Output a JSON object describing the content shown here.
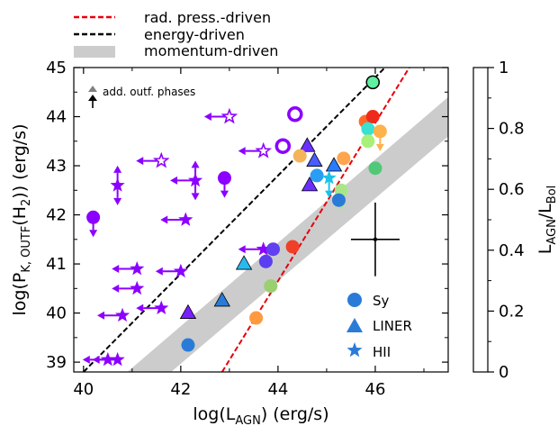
{
  "chart_data": {
    "type": "scatter",
    "title": "",
    "xlabel": "log(L",
    "xlabel_sub": "AGN",
    "xlabel_tail": ") (erg/s)",
    "ylabel": "log(P",
    "ylabel_sub": "K, OUTF",
    "ylabel_mid": "(H",
    "ylabel_sub2": "2",
    "ylabel_tail": ")) (erg/s)",
    "xlim": [
      39.8,
      47.5
    ],
    "ylim": [
      38.8,
      45.0
    ],
    "xticks": [
      "40",
      "42",
      "44",
      "46"
    ],
    "yticks": [
      "39",
      "40",
      "41",
      "42",
      "43",
      "44",
      "45"
    ],
    "colorbar": {
      "label": "L",
      "label_sub1": "AGN",
      "label_mid": "/L",
      "label_sub2": "Bol",
      "range": [
        0,
        1
      ],
      "ticks": [
        "0",
        "0.2",
        "0.4",
        "0.6",
        "0.8",
        "1"
      ]
    },
    "top_legend": [
      {
        "label": "rad. press.-driven",
        "style": "dashed",
        "color": "#e8000b"
      },
      {
        "label": "energy-driven",
        "style": "dashed",
        "color": "#000000"
      },
      {
        "label": "momentum-driven",
        "style": "band",
        "color": "#cccccc"
      }
    ],
    "annotation": "add. outf. phases",
    "marker_legend": [
      {
        "label": "Sy",
        "marker": "circle"
      },
      {
        "label": "LINER",
        "marker": "triangle"
      },
      {
        "label": "HII",
        "marker": "star"
      }
    ],
    "lines": {
      "energy_driven": [
        [
          40.0,
          38.8
        ],
        [
          46.2,
          45.0
        ]
      ],
      "radiation_driven": [
        [
          42.85,
          38.8
        ],
        [
          46.7,
          45.0
        ]
      ],
      "momentum_band": {
        "lower": [
          [
            41.8,
            38.8
          ],
          [
            47.5,
            43.6
          ]
        ],
        "upper": [
          [
            40.9,
            38.8
          ],
          [
            47.5,
            44.4
          ]
        ]
      }
    },
    "error_bar": {
      "x": 46.0,
      "y": 41.5,
      "dx": 0.5,
      "dy": 0.75
    },
    "points": [
      {
        "x": 40.2,
        "y": 41.95,
        "m": "circle",
        "c": "#8b00ff",
        "arrow": "down"
      },
      {
        "x": 40.7,
        "y": 42.6,
        "m": "star",
        "c": "#8b00ff",
        "arrow": "updown"
      },
      {
        "x": 41.6,
        "y": 43.1,
        "m": "star-open",
        "c": "#8b00ff",
        "arrow": "left"
      },
      {
        "x": 43.0,
        "y": 44.0,
        "m": "star-open",
        "c": "#8b00ff",
        "arrow": "left"
      },
      {
        "x": 43.7,
        "y": 43.3,
        "m": "star-open",
        "c": "#8b00ff",
        "arrow": "left"
      },
      {
        "x": 42.3,
        "y": 42.7,
        "m": "star",
        "c": "#8b00ff",
        "arrow": "updownleft"
      },
      {
        "x": 42.1,
        "y": 41.9,
        "m": "star",
        "c": "#8b00ff",
        "arrow": "left"
      },
      {
        "x": 42.9,
        "y": 42.75,
        "m": "circle",
        "c": "#8b00ff",
        "arrow": "down"
      },
      {
        "x": 43.7,
        "y": 41.3,
        "m": "star",
        "c": "#8b00ff",
        "arrow": "left"
      },
      {
        "x": 41.1,
        "y": 40.9,
        "m": "star",
        "c": "#8b00ff",
        "arrow": "left"
      },
      {
        "x": 42.0,
        "y": 40.85,
        "m": "star",
        "c": "#8b00ff",
        "arrow": "left"
      },
      {
        "x": 41.1,
        "y": 40.5,
        "m": "star",
        "c": "#8b00ff",
        "arrow": "left"
      },
      {
        "x": 41.6,
        "y": 40.1,
        "m": "star",
        "c": "#8b00ff",
        "arrow": "left"
      },
      {
        "x": 40.8,
        "y": 39.95,
        "m": "star",
        "c": "#8b00ff",
        "arrow": "left"
      },
      {
        "x": 40.7,
        "y": 39.05,
        "m": "star",
        "c": "#8b00ff",
        "arrow": "left"
      },
      {
        "x": 40.5,
        "y": 39.05,
        "m": "star",
        "c": "#8b00ff",
        "arrow": "left"
      },
      {
        "x": 44.1,
        "y": 43.4,
        "m": "circle-open",
        "c": "#8b00ff"
      },
      {
        "x": 44.35,
        "y": 44.05,
        "m": "circle-open",
        "c": "#8b00ff"
      },
      {
        "x": 44.6,
        "y": 43.4,
        "m": "triangle",
        "c": "#6a2fff"
      },
      {
        "x": 44.45,
        "y": 43.2,
        "m": "circle",
        "c": "#f5b35a"
      },
      {
        "x": 44.75,
        "y": 43.1,
        "m": "triangle",
        "c": "#4a5cff"
      },
      {
        "x": 45.15,
        "y": 43.0,
        "m": "triangle",
        "c": "#2b7bff"
      },
      {
        "x": 44.65,
        "y": 42.6,
        "m": "triangle",
        "c": "#6a2fff"
      },
      {
        "x": 44.8,
        "y": 42.8,
        "m": "circle",
        "c": "#2a9df4"
      },
      {
        "x": 45.05,
        "y": 42.75,
        "m": "star",
        "c": "#19c2e8",
        "arrow": "down"
      },
      {
        "x": 45.3,
        "y": 42.5,
        "m": "circle",
        "c": "#a8e68a",
        "arrow": "down"
      },
      {
        "x": 45.35,
        "y": 43.15,
        "m": "circle",
        "c": "#ffa54f"
      },
      {
        "x": 45.25,
        "y": 42.3,
        "m": "circle",
        "c": "#2a7bd8"
      },
      {
        "x": 45.8,
        "y": 43.9,
        "m": "circle",
        "c": "#ff6a2a"
      },
      {
        "x": 45.95,
        "y": 44.0,
        "m": "circle",
        "c": "#f02a1a"
      },
      {
        "x": 45.85,
        "y": 43.75,
        "m": "circle",
        "c": "#3ae0d0"
      },
      {
        "x": 45.85,
        "y": 43.5,
        "m": "circle",
        "c": "#a8f07a"
      },
      {
        "x": 46.1,
        "y": 43.7,
        "m": "circle",
        "c": "#ffb14a",
        "arrow": "down"
      },
      {
        "x": 46.0,
        "y": 42.95,
        "m": "circle",
        "c": "#50c878"
      },
      {
        "x": 45.95,
        "y": 44.7,
        "m": "circle-ring",
        "c": "#5ff0a0"
      },
      {
        "x": 43.9,
        "y": 41.3,
        "m": "circle",
        "c": "#6040f0"
      },
      {
        "x": 44.3,
        "y": 41.35,
        "m": "circle",
        "c": "#f0402a"
      },
      {
        "x": 43.75,
        "y": 41.05,
        "m": "circle",
        "c": "#5a3ff0"
      },
      {
        "x": 43.3,
        "y": 41.0,
        "m": "triangle",
        "c": "#2ab8f0"
      },
      {
        "x": 43.85,
        "y": 40.55,
        "m": "circle",
        "c": "#9ad070"
      },
      {
        "x": 42.15,
        "y": 39.35,
        "m": "circle",
        "c": "#2a7bd8"
      },
      {
        "x": 42.15,
        "y": 40.0,
        "m": "triangle",
        "c": "#7a20ff"
      },
      {
        "x": 42.85,
        "y": 40.25,
        "m": "triangle",
        "c": "#2a7bd8"
      },
      {
        "x": 43.55,
        "y": 39.9,
        "m": "circle",
        "c": "#ff9a40"
      }
    ]
  }
}
